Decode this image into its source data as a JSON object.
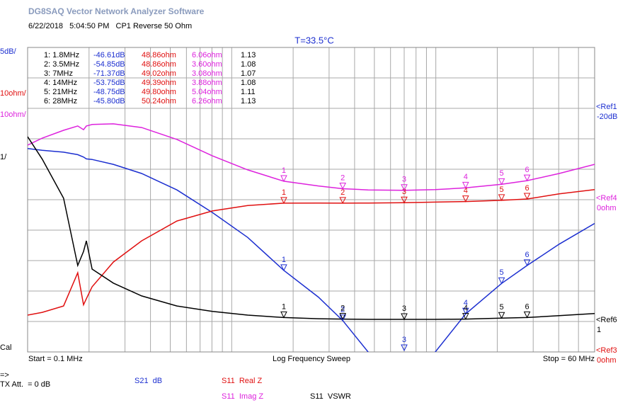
{
  "header": {
    "title": "DG8SAQ Vector Network Analyzer Software",
    "info": "6/22/2018   5:04:50 PM   CP1 Reverse 50 Ohm"
  },
  "chart_data": {
    "type": "line",
    "temperature": "T=33.5°C",
    "xlim": [
      0.1,
      60
    ],
    "x_start_label": "Start = 0.1 MHz",
    "x_stop_label": "Stop = 60 MHz",
    "sweep_label": "Log Frequency Sweep",
    "xlog": true,
    "xticks": [
      0.2,
      0.3,
      0.4,
      0.5,
      0.6,
      0.7,
      0.8,
      0.9,
      1,
      2,
      3,
      4,
      5,
      6,
      7,
      8,
      9,
      10,
      20,
      30,
      40,
      50
    ],
    "ylim": [
      -60,
      -10
    ],
    "yticks": [
      -55,
      -50,
      -45,
      -40,
      -35,
      -30,
      -25,
      -20,
      -15
    ],
    "grid": true,
    "x": [
      0.1,
      0.118,
      0.15,
      0.176,
      0.188,
      0.194,
      0.207,
      0.263,
      0.362,
      0.539,
      0.804,
      1.198,
      1.8,
      2.66,
      3.5,
      4.66,
      7,
      9.94,
      14,
      21,
      28,
      40.2,
      60
    ],
    "series": [
      {
        "name": "S21  dB",
        "color": "#1c2fd0",
        "scale_label": "5dB/",
        "ylim": [
          -60,
          -10
        ],
        "ref_name": "<Ref1",
        "ref": -20,
        "ref_label": "-20dB",
        "values": [
          -26.6,
          -26.9,
          -27.2,
          -27.6,
          -28,
          -28.3,
          -28.4,
          -29.2,
          -30.7,
          -33.4,
          -37.1,
          -41.2,
          -46.61,
          -51,
          -54.85,
          -60,
          -71.37,
          -60,
          -53.75,
          -48.75,
          -45.8,
          -42.3,
          -38.9
        ]
      },
      {
        "name": "S11  Real Z",
        "color": "#e01010",
        "scale_label": "10ohm/",
        "ylim": [
          0,
          100
        ],
        "ref_name": "<Ref3",
        "ref": 0,
        "ref_label": "0ohm",
        "values": [
          12.1,
          13,
          15.1,
          26,
          15.5,
          17.5,
          21.4,
          29.5,
          36.5,
          43,
          46.3,
          48.1,
          48.86,
          48.9,
          48.86,
          48.9,
          49.02,
          49.2,
          49.39,
          49.8,
          50.24,
          51.9,
          53.3
        ]
      },
      {
        "name": "S11  Imag Z",
        "color": "#dd22dd",
        "scale_label": "10ohm/",
        "ylim": [
          -50,
          50
        ],
        "ref_name": "<Ref4",
        "ref": 0,
        "ref_label": "0ohm",
        "values": [
          17.9,
          20.2,
          22.8,
          24.2,
          23,
          24.2,
          24.7,
          24.9,
          23.7,
          19.8,
          14.4,
          9.8,
          6.06,
          4.5,
          3.6,
          3.2,
          3.08,
          3.3,
          3.88,
          5.04,
          6.26,
          8.6,
          11.6
        ]
      },
      {
        "name": "S11  VSWR",
        "color": "#000000",
        "scale_label": "1/",
        "ylim": [
          0,
          10
        ],
        "ref_name": "<Ref6",
        "ref": 1,
        "ref_label": "1",
        "values": [
          7.07,
          6.33,
          5.05,
          2.84,
          3.3,
          3.65,
          2.72,
          2.26,
          1.84,
          1.51,
          1.33,
          1.21,
          1.13,
          1.09,
          1.08,
          1.07,
          1.07,
          1.07,
          1.08,
          1.11,
          1.13,
          1.19,
          1.26
        ]
      }
    ],
    "markers": [
      {
        "id": "1",
        "text": "1: 1.8MHz",
        "freq": 1.8,
        "values": [
          -46.61,
          48.86,
          6.06,
          1.13
        ],
        "value_labels": [
          "-46.61dB",
          "48.86ohm",
          "6.06ohm",
          "1.13"
        ]
      },
      {
        "id": "2",
        "text": "2: 3.5MHz",
        "freq": 3.5,
        "values": [
          -54.85,
          48.86,
          3.6,
          1.08
        ],
        "value_labels": [
          "-54.85dB",
          "48.86ohm",
          "3.60ohm",
          "1.08"
        ]
      },
      {
        "id": "3",
        "text": "3: 7MHz",
        "freq": 7,
        "values": [
          -71.37,
          49.02,
          3.08,
          1.07
        ],
        "value_labels": [
          "-71.37dB",
          "49.02ohm",
          "3.08ohm",
          "1.07"
        ]
      },
      {
        "id": "4",
        "text": "4: 14MHz",
        "freq": 14,
        "values": [
          -53.75,
          49.39,
          3.88,
          1.08
        ],
        "value_labels": [
          "-53.75dB",
          "49.39ohm",
          "3.88ohm",
          "1.08"
        ]
      },
      {
        "id": "5",
        "text": "5: 21MHz",
        "freq": 21,
        "values": [
          -48.75,
          49.8,
          5.04,
          1.11
        ],
        "value_labels": [
          "-48.75dB",
          "49.80ohm",
          "5.04ohm",
          "1.11"
        ]
      },
      {
        "id": "6",
        "text": "6: 28MHz",
        "freq": 28,
        "values": [
          -45.8,
          50.24,
          6.26,
          1.13
        ],
        "value_labels": [
          "-45.80dB",
          "50.24ohm",
          "6.26ohm",
          "1.13"
        ]
      }
    ]
  },
  "footer": {
    "arrow": "=>",
    "cal": "Cal",
    "tx_att": "TX Att.  = 0 dB"
  }
}
